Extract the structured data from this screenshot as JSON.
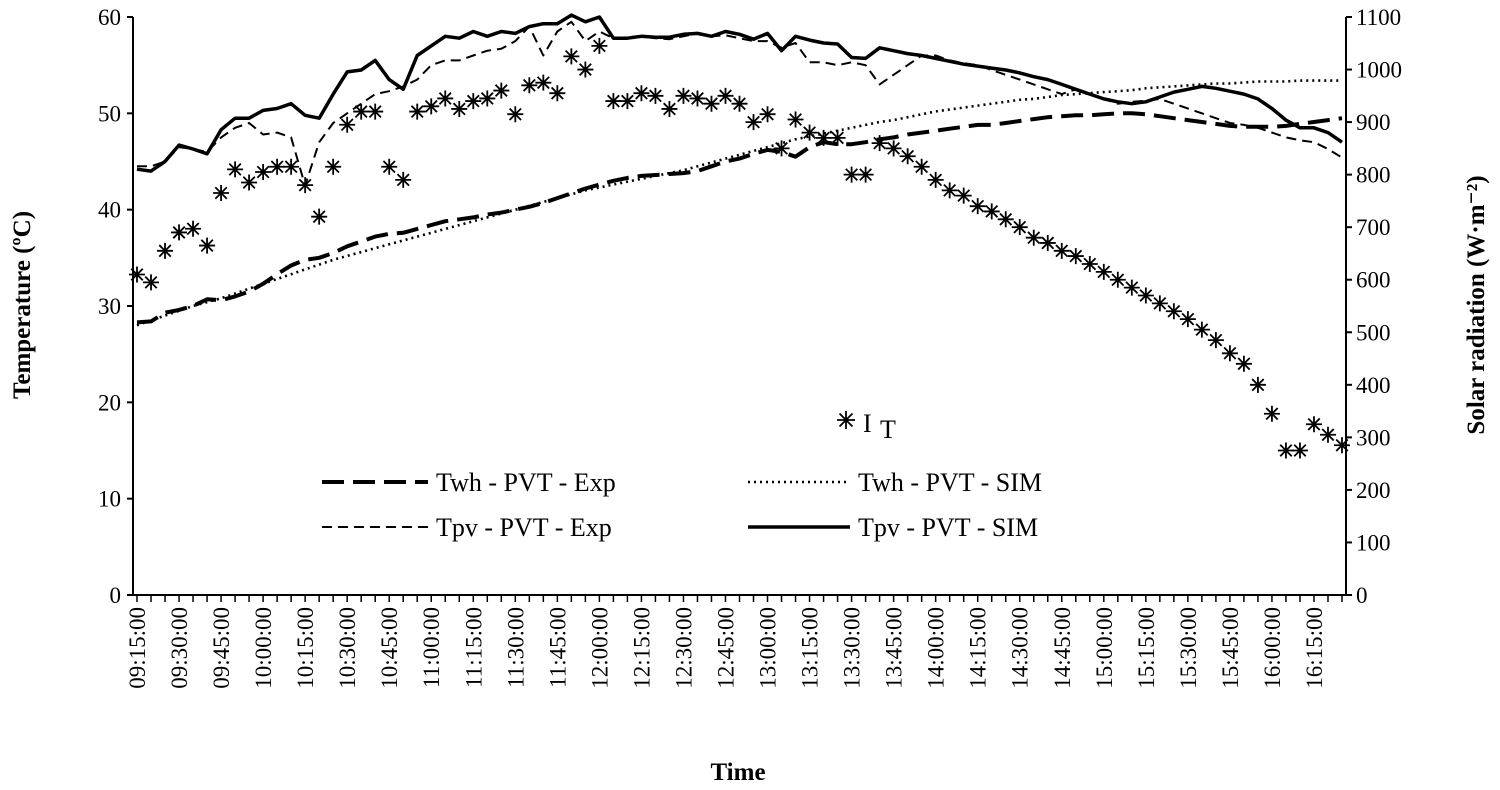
{
  "chart_data": {
    "type": "line",
    "xlabel": "Time",
    "ylabel_left": "Temperature (ºC)",
    "ylabel_right": "Solar radiation (W·m⁻²)",
    "ylim_left": [
      0,
      60
    ],
    "yticks_left": [
      0,
      10,
      20,
      30,
      40,
      50,
      60
    ],
    "ylim_right": [
      0,
      1100
    ],
    "yticks_right": [
      0,
      100,
      200,
      300,
      400,
      500,
      600,
      700,
      800,
      900,
      1000,
      1100
    ],
    "grid": false,
    "legend_placement": "center-bottom",
    "x": [
      "09:15:00",
      "09:20:00",
      "09:25:00",
      "09:30:00",
      "09:35:00",
      "09:40:00",
      "09:45:00",
      "09:50:00",
      "09:55:00",
      "10:00:00",
      "10:05:00",
      "10:10:00",
      "10:15:00",
      "10:20:00",
      "10:25:00",
      "10:30:00",
      "10:35:00",
      "10:40:00",
      "10:45:00",
      "10:50:00",
      "10:55:00",
      "11:00:00",
      "11:05:00",
      "11:10:00",
      "11:15:00",
      "11:20:00",
      "11:25:00",
      "11:30:00",
      "11:35:00",
      "11:40:00",
      "11:45:00",
      "11:50:00",
      "11:55:00",
      "12:00:00",
      "12:05:00",
      "12:10:00",
      "12:15:00",
      "12:20:00",
      "12:25:00",
      "12:30:00",
      "12:35:00",
      "12:40:00",
      "12:45:00",
      "12:50:00",
      "12:55:00",
      "13:00:00",
      "13:05:00",
      "13:10:00",
      "13:15:00",
      "13:20:00",
      "13:25:00",
      "13:30:00",
      "13:35:00",
      "13:40:00",
      "13:45:00",
      "13:50:00",
      "13:55:00",
      "14:00:00",
      "14:05:00",
      "14:10:00",
      "14:15:00",
      "14:20:00",
      "14:25:00",
      "14:30:00",
      "14:35:00",
      "14:40:00",
      "14:45:00",
      "14:50:00",
      "14:55:00",
      "15:00:00",
      "15:05:00",
      "15:10:00",
      "15:15:00",
      "15:20:00",
      "15:25:00",
      "15:30:00",
      "15:35:00",
      "15:40:00",
      "15:45:00",
      "15:50:00",
      "15:55:00",
      "16:00:00",
      "16:05:00",
      "16:10:00",
      "16:15:00",
      "16:20:00",
      "16:25:00"
    ],
    "xtick_labels": [
      "09:15:00",
      "09:30:00",
      "09:45:00",
      "10:00:00",
      "10:15:00",
      "10:30:00",
      "10:45:00",
      "11:00:00",
      "11:15:00",
      "11:30:00",
      "11:45:00",
      "12:00:00",
      "12:15:00",
      "12:30:00",
      "12:45:00",
      "13:00:00",
      "13:15:00",
      "13:30:00",
      "13:45:00",
      "14:00:00",
      "14:15:00",
      "14:30:00",
      "14:45:00",
      "15:00:00",
      "15:15:00",
      "15:30:00",
      "15:45:00",
      "16:00:00",
      "16:15:00"
    ],
    "series": [
      {
        "name": "Twh - PVT - Exp",
        "axis": "left",
        "style": "long-dash",
        "values": [
          28.3,
          28.4,
          29.3,
          29.6,
          30.0,
          30.7,
          30.6,
          31.0,
          31.5,
          32.3,
          33.3,
          34.2,
          34.8,
          35.0,
          35.5,
          36.2,
          36.7,
          37.2,
          37.5,
          37.6,
          38.0,
          38.4,
          38.8,
          39.0,
          39.2,
          39.5,
          39.7,
          40.0,
          40.3,
          40.7,
          41.2,
          41.7,
          42.2,
          42.6,
          43.0,
          43.3,
          43.5,
          43.6,
          43.7,
          43.8,
          44.0,
          44.5,
          45.0,
          45.3,
          45.8,
          46.2,
          46.0,
          45.5,
          46.5,
          47.0,
          46.8,
          46.8,
          47.0,
          47.3,
          47.5,
          47.8,
          48.0,
          48.2,
          48.4,
          48.6,
          48.8,
          48.8,
          49.0,
          49.2,
          49.4,
          49.6,
          49.7,
          49.8,
          49.8,
          49.9,
          50.0,
          50.0,
          49.9,
          49.7,
          49.5,
          49.3,
          49.1,
          48.9,
          48.7,
          48.6,
          48.6,
          48.6,
          48.7,
          48.9,
          49.1,
          49.3,
          49.5
        ]
      },
      {
        "name": "Twh - PVT - SIM",
        "axis": "left",
        "style": "dotted",
        "values": [
          28.0,
          28.5,
          29.0,
          29.5,
          30.0,
          30.4,
          30.8,
          31.3,
          31.8,
          32.3,
          32.8,
          33.3,
          33.8,
          34.3,
          34.8,
          35.2,
          35.6,
          36.0,
          36.4,
          36.8,
          37.2,
          37.6,
          38.0,
          38.4,
          38.8,
          39.2,
          39.6,
          40.0,
          40.4,
          40.8,
          41.2,
          41.6,
          42.0,
          42.3,
          42.6,
          42.9,
          43.2,
          43.5,
          43.8,
          44.1,
          44.5,
          44.9,
          45.3,
          45.7,
          46.1,
          46.5,
          46.9,
          47.3,
          47.6,
          47.9,
          48.2,
          48.5,
          48.8,
          49.1,
          49.3,
          49.6,
          49.9,
          50.2,
          50.4,
          50.6,
          50.8,
          51.0,
          51.2,
          51.4,
          51.5,
          51.7,
          51.9,
          52.0,
          52.1,
          52.2,
          52.3,
          52.4,
          52.6,
          52.7,
          52.8,
          52.9,
          53.0,
          53.1,
          53.1,
          53.2,
          53.3,
          53.3,
          53.3,
          53.4,
          53.4,
          53.4,
          53.4
        ]
      },
      {
        "name": "Tpv - PVT - Exp",
        "axis": "left",
        "style": "short-dash",
        "values": [
          44.5,
          44.5,
          45.0,
          46.5,
          46.3,
          46.0,
          47.5,
          48.5,
          49.0,
          47.8,
          48.0,
          47.5,
          42.5,
          47.0,
          49.0,
          50.0,
          51.0,
          52.0,
          52.3,
          52.8,
          53.5,
          55.0,
          55.5,
          55.5,
          56.0,
          56.5,
          56.7,
          57.5,
          59.0,
          56.0,
          58.5,
          59.5,
          57.5,
          58.5,
          57.8,
          57.9,
          58.0,
          57.8,
          57.7,
          58.0,
          58.3,
          58.0,
          58.1,
          57.8,
          57.5,
          57.5,
          56.8,
          57.3,
          55.3,
          55.3,
          55.0,
          55.3,
          55.0,
          53.0,
          54.0,
          55.0,
          56.0,
          56.0,
          55.5,
          55.2,
          55.0,
          54.5,
          54.0,
          53.5,
          53.0,
          52.5,
          52.0,
          52.5,
          52.0,
          51.5,
          51.0,
          51.2,
          51.3,
          51.5,
          51.0,
          50.5,
          50.0,
          49.5,
          49.0,
          48.8,
          48.5,
          48.0,
          47.5,
          47.2,
          47.0,
          46.3,
          45.4
        ]
      },
      {
        "name": "Tpv - PVT - SIM",
        "axis": "left",
        "style": "solid",
        "values": [
          44.2,
          44.0,
          45.0,
          46.7,
          46.3,
          45.8,
          48.3,
          49.5,
          49.5,
          50.3,
          50.5,
          51.0,
          49.8,
          49.5,
          52.0,
          54.3,
          54.5,
          55.5,
          53.5,
          52.5,
          56.0,
          57.0,
          58.0,
          57.8,
          58.5,
          58.0,
          58.5,
          58.3,
          59.0,
          59.3,
          59.3,
          60.2,
          59.5,
          60.0,
          57.8,
          57.8,
          58.0,
          57.9,
          57.9,
          58.2,
          58.3,
          58.0,
          58.5,
          58.2,
          57.7,
          58.3,
          56.5,
          58.0,
          57.6,
          57.3,
          57.2,
          55.8,
          55.7,
          56.8,
          56.5,
          56.2,
          56.0,
          55.7,
          55.4,
          55.1,
          54.9,
          54.7,
          54.5,
          54.2,
          53.8,
          53.5,
          53.0,
          52.5,
          52.0,
          51.5,
          51.2,
          51.0,
          51.2,
          51.7,
          52.2,
          52.5,
          52.8,
          52.6,
          52.3,
          52.0,
          51.5,
          50.5,
          49.3,
          48.5,
          48.5,
          48.0,
          47.0
        ]
      },
      {
        "name": "I T",
        "axis": "right",
        "style": "asterisk-markers",
        "values": [
          610,
          595,
          655,
          690,
          697,
          665,
          765,
          810,
          785,
          805,
          815,
          815,
          780,
          720,
          815,
          895,
          920,
          920,
          815,
          790,
          920,
          930,
          945,
          925,
          940,
          945,
          960,
          915,
          970,
          975,
          955,
          1025,
          1000,
          1045,
          940,
          940,
          955,
          950,
          925,
          950,
          945,
          935,
          950,
          935,
          900,
          915,
          850,
          905,
          880,
          870,
          870,
          800,
          800,
          860,
          850,
          835,
          815,
          790,
          770,
          760,
          740,
          730,
          715,
          700,
          680,
          670,
          655,
          645,
          630,
          615,
          600,
          585,
          570,
          555,
          540,
          525,
          505,
          485,
          460,
          440,
          400,
          345,
          275,
          275,
          325,
          305,
          285
        ]
      }
    ],
    "legend": {
      "rows": [
        [
          {
            "label": "Twh - PVT  - Exp",
            "style": "long-dash"
          },
          {
            "label": "Twh - PVT  - SIM",
            "style": "dotted"
          }
        ],
        [
          {
            "label": "Tpv - PVT  - Exp",
            "style": "short-dash"
          },
          {
            "label": "Tpv - PVT  - SIM",
            "style": "solid"
          }
        ]
      ],
      "marker_label_main": "I",
      "marker_label_sub": "T"
    }
  }
}
